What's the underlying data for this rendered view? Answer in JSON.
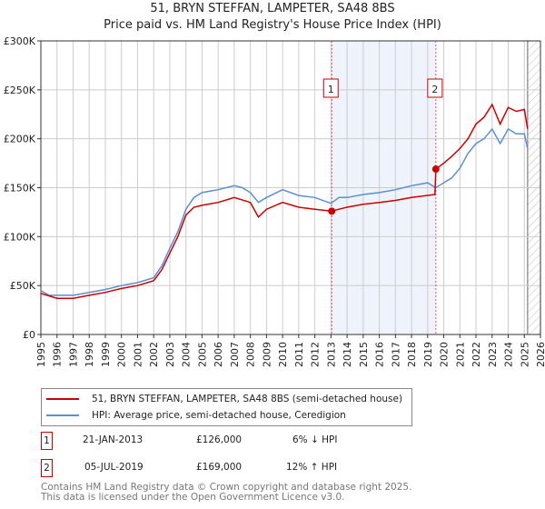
{
  "chart_data": {
    "type": "line",
    "title": "51, BRYN STEFFAN, LAMPETER, SA48 8BS",
    "subtitle": "Price paid vs. HM Land Registry's House Price Index (HPI)",
    "xlim": [
      1995,
      2026
    ],
    "ylim": [
      0,
      300000
    ],
    "x_ticks": [
      "1995",
      "1996",
      "1997",
      "1998",
      "1999",
      "2000",
      "2001",
      "2002",
      "2003",
      "2004",
      "2005",
      "2006",
      "2007",
      "2008",
      "2009",
      "2010",
      "2011",
      "2012",
      "2013",
      "2014",
      "2015",
      "2016",
      "2017",
      "2018",
      "2019",
      "2020",
      "2021",
      "2022",
      "2023",
      "2024",
      "2025",
      "2026"
    ],
    "y_ticks": [
      {
        "v": 0,
        "label": "£0"
      },
      {
        "v": 50000,
        "label": "£50K"
      },
      {
        "v": 100000,
        "label": "£100K"
      },
      {
        "v": 150000,
        "label": "£150K"
      },
      {
        "v": 200000,
        "label": "£200K"
      },
      {
        "v": 250000,
        "label": "£250K"
      },
      {
        "v": 300000,
        "label": "£300K"
      }
    ],
    "grid": true,
    "shaded_range": [
      2013.05,
      2019.51
    ],
    "hatched_from": 2025.2,
    "series": [
      {
        "name": "51, BRYN STEFFAN, LAMPETER, SA48 8BS (semi-detached house)",
        "color": "#cc0000",
        "x": [
          1995,
          1996,
          1997,
          1998,
          1999,
          2000,
          2001,
          2002,
          2002.5,
          2003,
          2003.5,
          2004,
          2004.5,
          2005,
          2006,
          2007,
          2008,
          2008.5,
          2009,
          2010,
          2011,
          2012,
          2013.05,
          2013.5,
          2014,
          2015,
          2016,
          2017,
          2018,
          2019.45,
          2019.51,
          2020,
          2020.5,
          2021,
          2021.5,
          2022,
          2022.5,
          2023,
          2023.5,
          2024,
          2024.5,
          2025,
          2025.2
        ],
        "y": [
          42000,
          37000,
          37000,
          40000,
          43000,
          47000,
          50000,
          55000,
          66000,
          83000,
          100000,
          122000,
          130000,
          132000,
          135000,
          140000,
          135000,
          120000,
          128000,
          135000,
          130000,
          128000,
          126000,
          128000,
          130000,
          133000,
          135000,
          137000,
          140000,
          143000,
          169000,
          175000,
          182000,
          190000,
          200000,
          215000,
          222000,
          235000,
          215000,
          232000,
          228000,
          230000,
          210000
        ]
      },
      {
        "name": "HPI: Average price, semi-detached house, Ceredigion",
        "color": "#5b8fd0",
        "x": [
          1995,
          1995.5,
          1996,
          1997,
          1998,
          1999,
          2000,
          2001,
          2002,
          2002.5,
          2003,
          2003.5,
          2004,
          2004.5,
          2005,
          2006,
          2007,
          2007.5,
          2008,
          2008.5,
          2009,
          2010,
          2010.5,
          2011,
          2012,
          2013,
          2013.5,
          2014,
          2015,
          2016,
          2017,
          2018,
          2019,
          2019.5,
          2020,
          2020.5,
          2021,
          2021.5,
          2022,
          2022.5,
          2023,
          2023.5,
          2024,
          2024.5,
          2025,
          2025.2
        ],
        "y": [
          45000,
          40000,
          40000,
          40000,
          43000,
          46000,
          50000,
          53000,
          58000,
          70000,
          88000,
          105000,
          128000,
          140000,
          145000,
          148000,
          152000,
          150000,
          145000,
          135000,
          140000,
          148000,
          145000,
          142000,
          140000,
          134000,
          140000,
          140000,
          143000,
          145000,
          148000,
          152000,
          155000,
          150000,
          155000,
          160000,
          170000,
          185000,
          195000,
          200000,
          210000,
          195000,
          210000,
          205000,
          205000,
          190000
        ]
      }
    ],
    "sales": [
      {
        "label": "1",
        "x": 2013.05,
        "y": 126000
      },
      {
        "label": "2",
        "x": 2019.51,
        "y": 169000
      }
    ]
  },
  "legend": {
    "red": "51, BRYN STEFFAN, LAMPETER, SA48 8BS (semi-detached house)",
    "blue": "HPI: Average price, semi-detached house, Ceredigion"
  },
  "transactions": [
    {
      "num": "1",
      "date": "21-JAN-2013",
      "price": "£126,000",
      "hpi": "6% ↓ HPI"
    },
    {
      "num": "2",
      "date": "05-JUL-2019",
      "price": "£169,000",
      "hpi": "12% ↑ HPI"
    }
  ],
  "footer": {
    "line1": "Contains HM Land Registry data © Crown copyright and database right 2025.",
    "line2": "This data is licensed under the Open Government Licence v3.0."
  }
}
